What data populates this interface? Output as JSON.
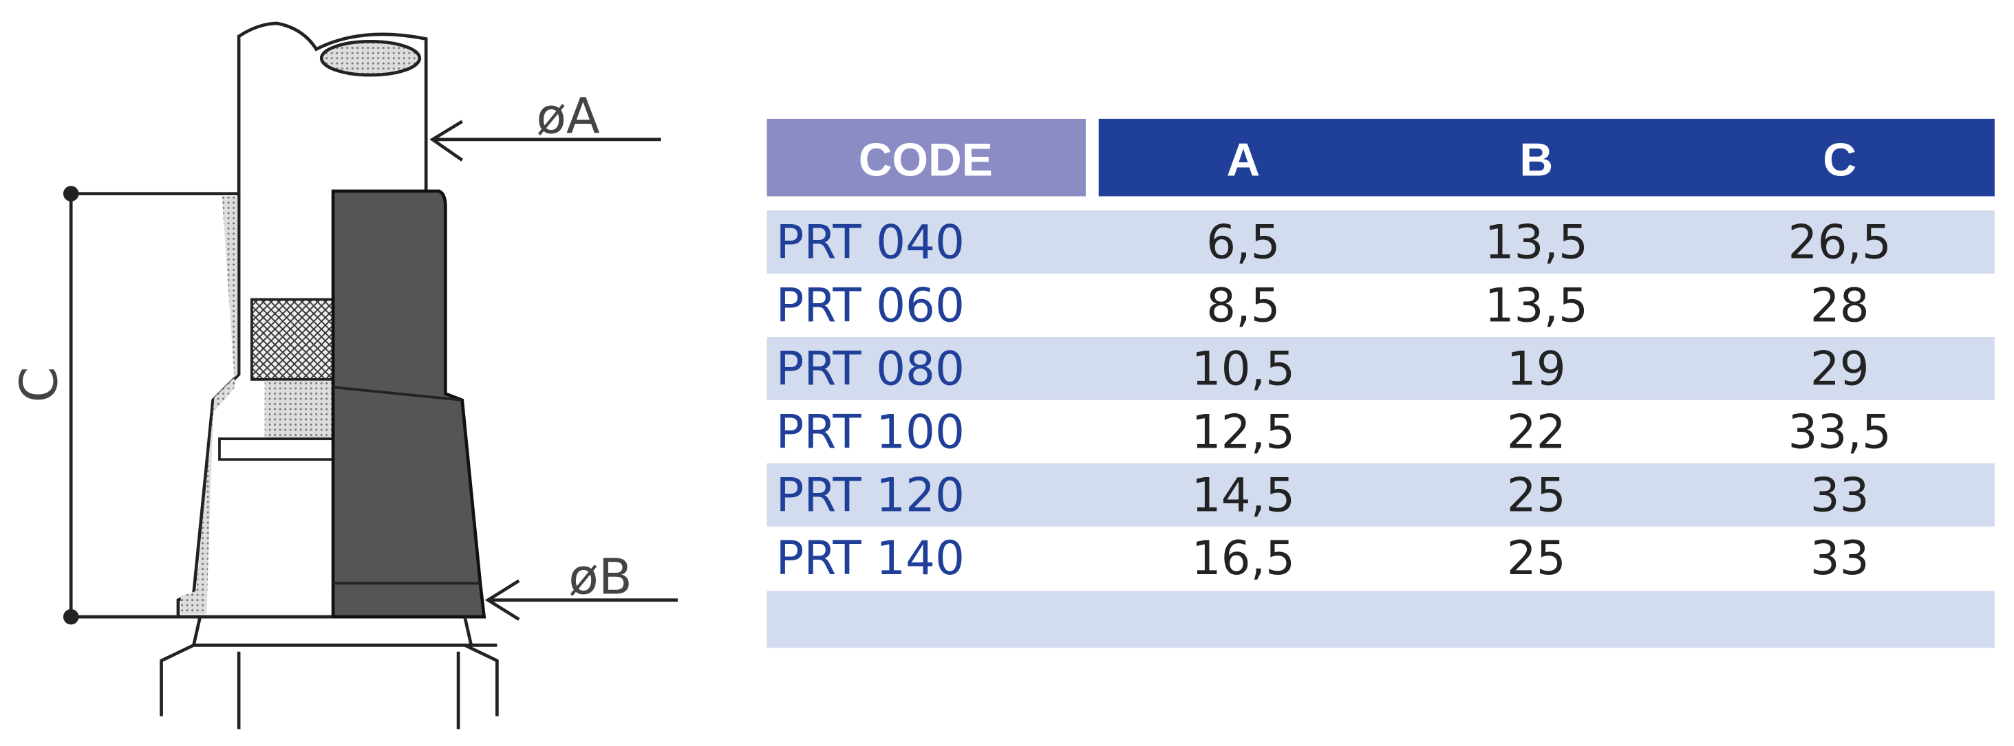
{
  "diagram": {
    "labels": {
      "diameter_a": "øA",
      "diameter_b": "øB",
      "height_c": "C"
    }
  },
  "table": {
    "header": [
      "CODE",
      "A",
      "B",
      "C"
    ],
    "rows": [
      [
        "PRT 040",
        "6,5",
        "13,5",
        "26,5"
      ],
      [
        "PRT 060",
        "8,5",
        "13,5",
        "28"
      ],
      [
        "PRT 080",
        "10,5",
        "19",
        "29"
      ],
      [
        "PRT 100",
        "12,5",
        "22",
        "33,5"
      ],
      [
        "PRT 120",
        "14,5",
        "25",
        "33"
      ],
      [
        "PRT 140",
        "16,5",
        "25",
        "33"
      ]
    ]
  }
}
